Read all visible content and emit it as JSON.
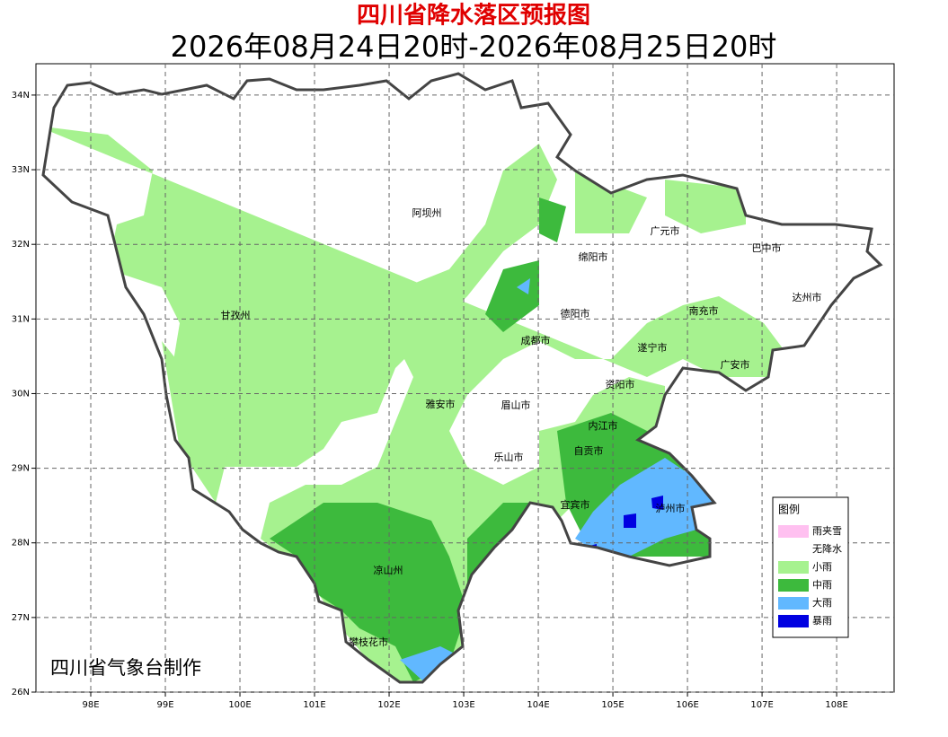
{
  "title": "四川省降水落区预报图",
  "subtitle": "2026年08月24日20时-2026年08月25日20时",
  "credit": "四川省气象台制作",
  "map": {
    "xlim": [
      97.265,
      108.77
    ],
    "ylim": [
      26,
      34.42
    ],
    "xticks": [
      {
        "value": 98,
        "label": "98E"
      },
      {
        "value": 99,
        "label": "99E"
      },
      {
        "value": 100,
        "label": "100E"
      },
      {
        "value": 101,
        "label": "101E"
      },
      {
        "value": 102,
        "label": "102E"
      },
      {
        "value": 103,
        "label": "103E"
      },
      {
        "value": 104,
        "label": "104E"
      },
      {
        "value": 105,
        "label": "105E"
      },
      {
        "value": 106,
        "label": "106E"
      },
      {
        "value": 107,
        "label": "107E"
      },
      {
        "value": 108,
        "label": "108E"
      }
    ],
    "yticks": [
      {
        "value": 26,
        "label": "26N"
      },
      {
        "value": 27,
        "label": "27N"
      },
      {
        "value": 28,
        "label": "28N"
      },
      {
        "value": 29,
        "label": "29N"
      },
      {
        "value": 30,
        "label": "30N"
      },
      {
        "value": 31,
        "label": "31N"
      },
      {
        "value": 32,
        "label": "32N"
      },
      {
        "value": 33,
        "label": "33N"
      },
      {
        "value": 34,
        "label": "34N"
      }
    ],
    "grid": true,
    "cities": [
      "阿坝州",
      "广元市",
      "巴中市",
      "绵阳市",
      "甘孜州",
      "德阳市",
      "南充市",
      "达州市",
      "成都市",
      "遂宁市",
      "广安市",
      "资阳市",
      "雅安市",
      "眉山市",
      "内江市",
      "自贡市",
      "乐山市",
      "宜宾市",
      "泸州市",
      "凉山州",
      "攀枝花市"
    ]
  },
  "legend": {
    "title": "图例",
    "items": [
      {
        "name": "雨夹雪",
        "color": "#ffc0f0"
      },
      {
        "name": "无降水",
        "color": "#ffffff"
      },
      {
        "name": "小雨",
        "color": "#a6f28f"
      },
      {
        "name": "中雨",
        "color": "#3dba3d"
      },
      {
        "name": "大雨",
        "color": "#61b8ff"
      },
      {
        "name": "暴雨",
        "color": "#0000e1"
      }
    ]
  }
}
